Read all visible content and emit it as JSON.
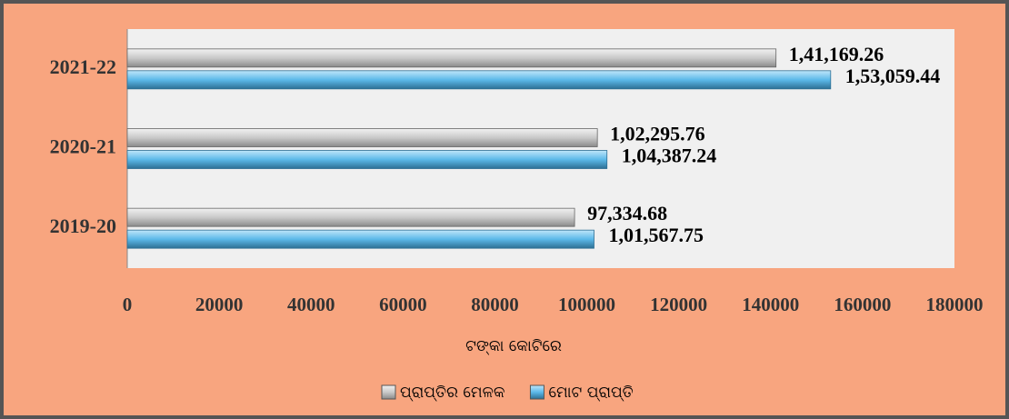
{
  "chart_data": {
    "type": "barh",
    "categories": [
      "2021-22",
      "2020-21",
      "2019-20"
    ],
    "series": [
      {
        "name": "ପ୍ରାପ୍ତିର ମେଳକ",
        "color": "#c9c9c9",
        "values": [
          141169.26,
          102295.76,
          97334.68
        ],
        "value_labels": [
          "1,41,169.26",
          "1,02,295.76",
          "97,334.68"
        ]
      },
      {
        "name": "ମୋଟ ପ୍ରାପ୍ତି",
        "color": "#5cb9e9",
        "values": [
          153059.44,
          104387.24,
          101567.75
        ],
        "value_labels": [
          "1,53,059.44",
          "1,04,387.24",
          "1,01,567.75"
        ]
      }
    ],
    "xlabel": "ଟଙ୍କା କୋଟିରେ",
    "xlim": [
      0,
      180000
    ],
    "xticks": [
      0,
      20000,
      40000,
      60000,
      80000,
      100000,
      120000,
      140000,
      160000,
      180000
    ],
    "legend": "bottom"
  }
}
